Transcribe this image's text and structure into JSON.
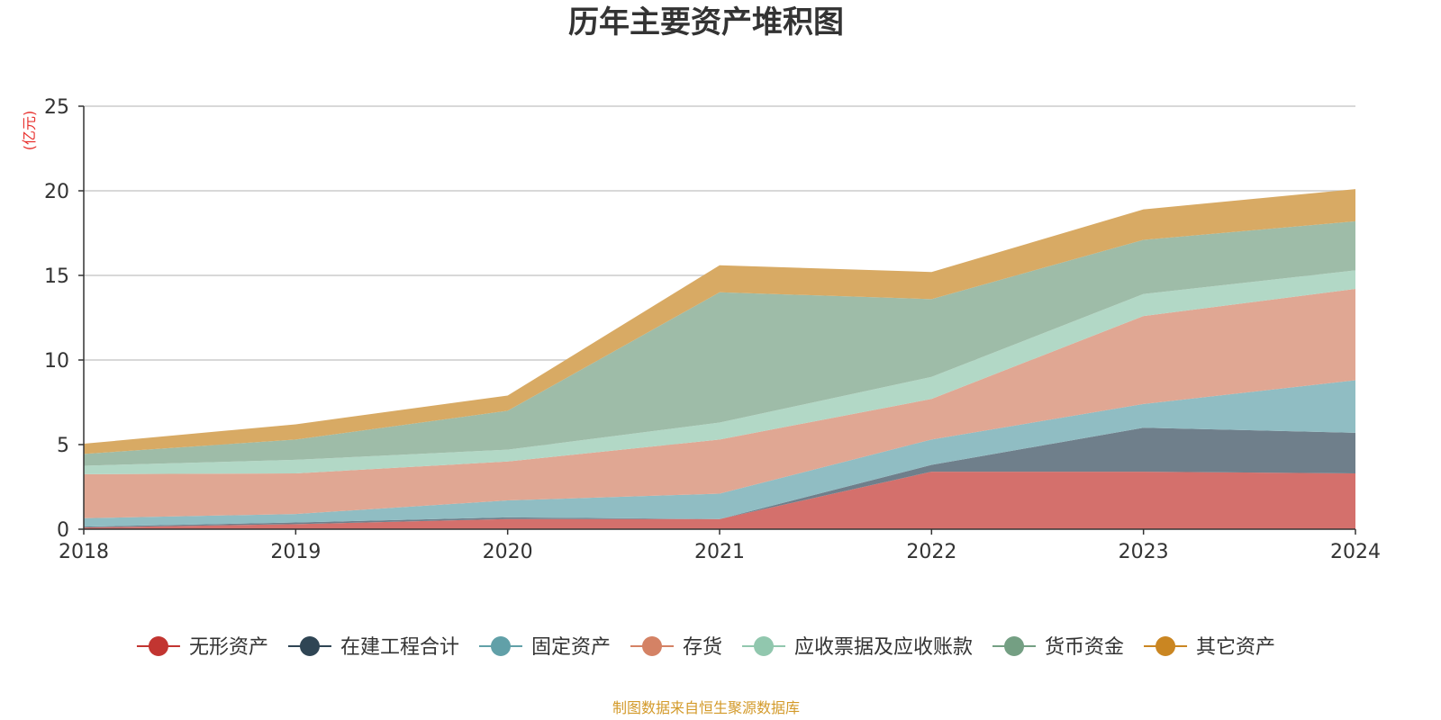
{
  "chart_data": {
    "type": "area",
    "title": "历年主要资产堆积图",
    "unit_label": "(亿元)",
    "source_note": "制图数据来自恒生聚源数据库",
    "x": [
      "2018",
      "2019",
      "2020",
      "2021",
      "2022",
      "2023",
      "2024"
    ],
    "ylim": [
      0,
      25
    ],
    "yticks": [
      "0",
      "5",
      "10",
      "15",
      "20",
      "25"
    ],
    "grid": true,
    "legend_position": "bottom",
    "stacked": true,
    "series": [
      {
        "name": "无形资产",
        "color": "#c23531",
        "fill": "#d4706c",
        "values": [
          0.1,
          0.3,
          0.6,
          0.6,
          3.4,
          3.4,
          3.3
        ]
      },
      {
        "name": "在建工程合计",
        "color": "#2f4554",
        "fill": "#6f7f8b",
        "values": [
          0.05,
          0.1,
          0.1,
          0.0,
          0.4,
          2.6,
          2.4
        ]
      },
      {
        "name": "固定资产",
        "color": "#61a0a8",
        "fill": "#90bdc3",
        "values": [
          0.5,
          0.5,
          1.0,
          1.5,
          1.5,
          1.4,
          3.1
        ]
      },
      {
        "name": "存货",
        "color": "#d48265",
        "fill": "#e0a793",
        "values": [
          2.6,
          2.4,
          2.3,
          3.2,
          2.4,
          5.2,
          5.4
        ]
      },
      {
        "name": "应收票据及应收账款",
        "color": "#91c7ae",
        "fill": "#b2d8c6",
        "values": [
          0.5,
          0.8,
          0.7,
          1.0,
          1.3,
          1.3,
          1.1
        ]
      },
      {
        "name": "货币资金",
        "color": "#749f83",
        "fill": "#9ebca8",
        "values": [
          0.7,
          1.2,
          2.3,
          7.7,
          4.6,
          3.2,
          2.9
        ]
      },
      {
        "name": "其它资产",
        "color": "#ca8622",
        "fill": "#d8aa64",
        "values": [
          0.6,
          0.9,
          0.9,
          1.6,
          1.6,
          1.8,
          1.9
        ]
      }
    ]
  }
}
